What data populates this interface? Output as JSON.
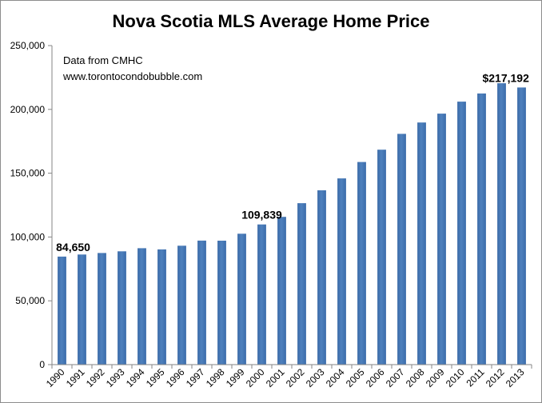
{
  "chart_data": {
    "type": "bar",
    "title": "Nova Scotia MLS Average Home Price",
    "xlabel": "",
    "ylabel": "",
    "ylim": [
      0,
      250000
    ],
    "yticks": [
      "0",
      "50,000",
      "100,000",
      "150,000",
      "200,000",
      "250,000"
    ],
    "ytick_values": [
      0,
      50000,
      100000,
      150000,
      200000,
      250000
    ],
    "categories": [
      "1990",
      "1991",
      "1992",
      "1993",
      "1994",
      "1995",
      "1996",
      "1997",
      "1998",
      "1999",
      "2000",
      "2001",
      "2002",
      "2003",
      "2004",
      "2005",
      "2006",
      "2007",
      "2008",
      "2009",
      "2010",
      "2011",
      "2012",
      "2013"
    ],
    "values": [
      84650,
      86300,
      87500,
      88800,
      91200,
      90300,
      93200,
      97200,
      97100,
      102600,
      109839,
      115800,
      126500,
      136600,
      145900,
      158800,
      168400,
      180800,
      189700,
      196700,
      206100,
      212500,
      220500,
      217192
    ],
    "bar_color": "#4f81bd",
    "grid": false,
    "annotations": [
      {
        "text": "Data from CMHC"
      },
      {
        "text": "www.torontocondobubble.com"
      }
    ],
    "data_labels": [
      {
        "index": 0,
        "text": "84,650"
      },
      {
        "index": 10,
        "text": "109,839"
      },
      {
        "index": 23,
        "text": "$217,192"
      }
    ]
  }
}
